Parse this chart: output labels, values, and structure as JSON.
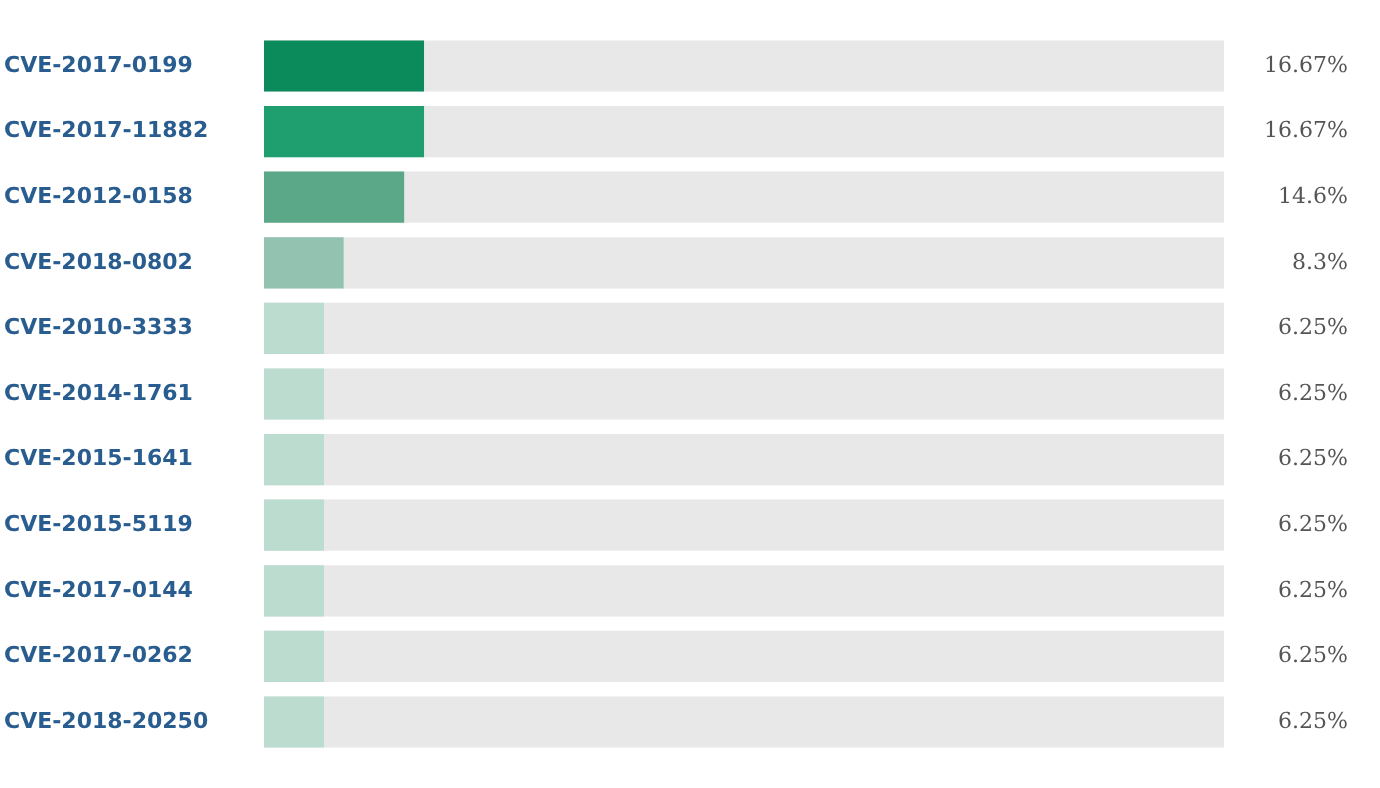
{
  "chart_data": {
    "type": "bar",
    "orientation": "horizontal",
    "categories": [
      "CVE-2017-0199",
      "CVE-2017-11882",
      "CVE-2012-0158",
      "CVE-2018-0802",
      "CVE-2010-3333",
      "CVE-2014-1761",
      "CVE-2015-1641",
      "CVE-2015-5119",
      "CVE-2017-0144",
      "CVE-2017-0262",
      "CVE-2018-20250"
    ],
    "values": [
      16.67,
      16.67,
      14.6,
      8.3,
      6.25,
      6.25,
      6.25,
      6.25,
      6.25,
      6.25,
      6.25
    ],
    "value_labels": [
      "16.67%",
      "16.67%",
      "14.6%",
      "8.3%",
      "6.25%",
      "6.25%",
      "6.25%",
      "6.25%",
      "6.25%",
      "6.25%",
      "6.25%"
    ],
    "colors": [
      "#0b8a5c",
      "#1f9e6f",
      "#5aa887",
      "#93c3b0",
      "#bcdcd0",
      "#bcdcd0",
      "#bcdcd0",
      "#bcdcd0",
      "#bcdcd0",
      "#bcdcd0",
      "#bcdcd0"
    ],
    "xlim": [
      0,
      100
    ],
    "tick_labels": "y",
    "grid": false,
    "legend": false
  }
}
